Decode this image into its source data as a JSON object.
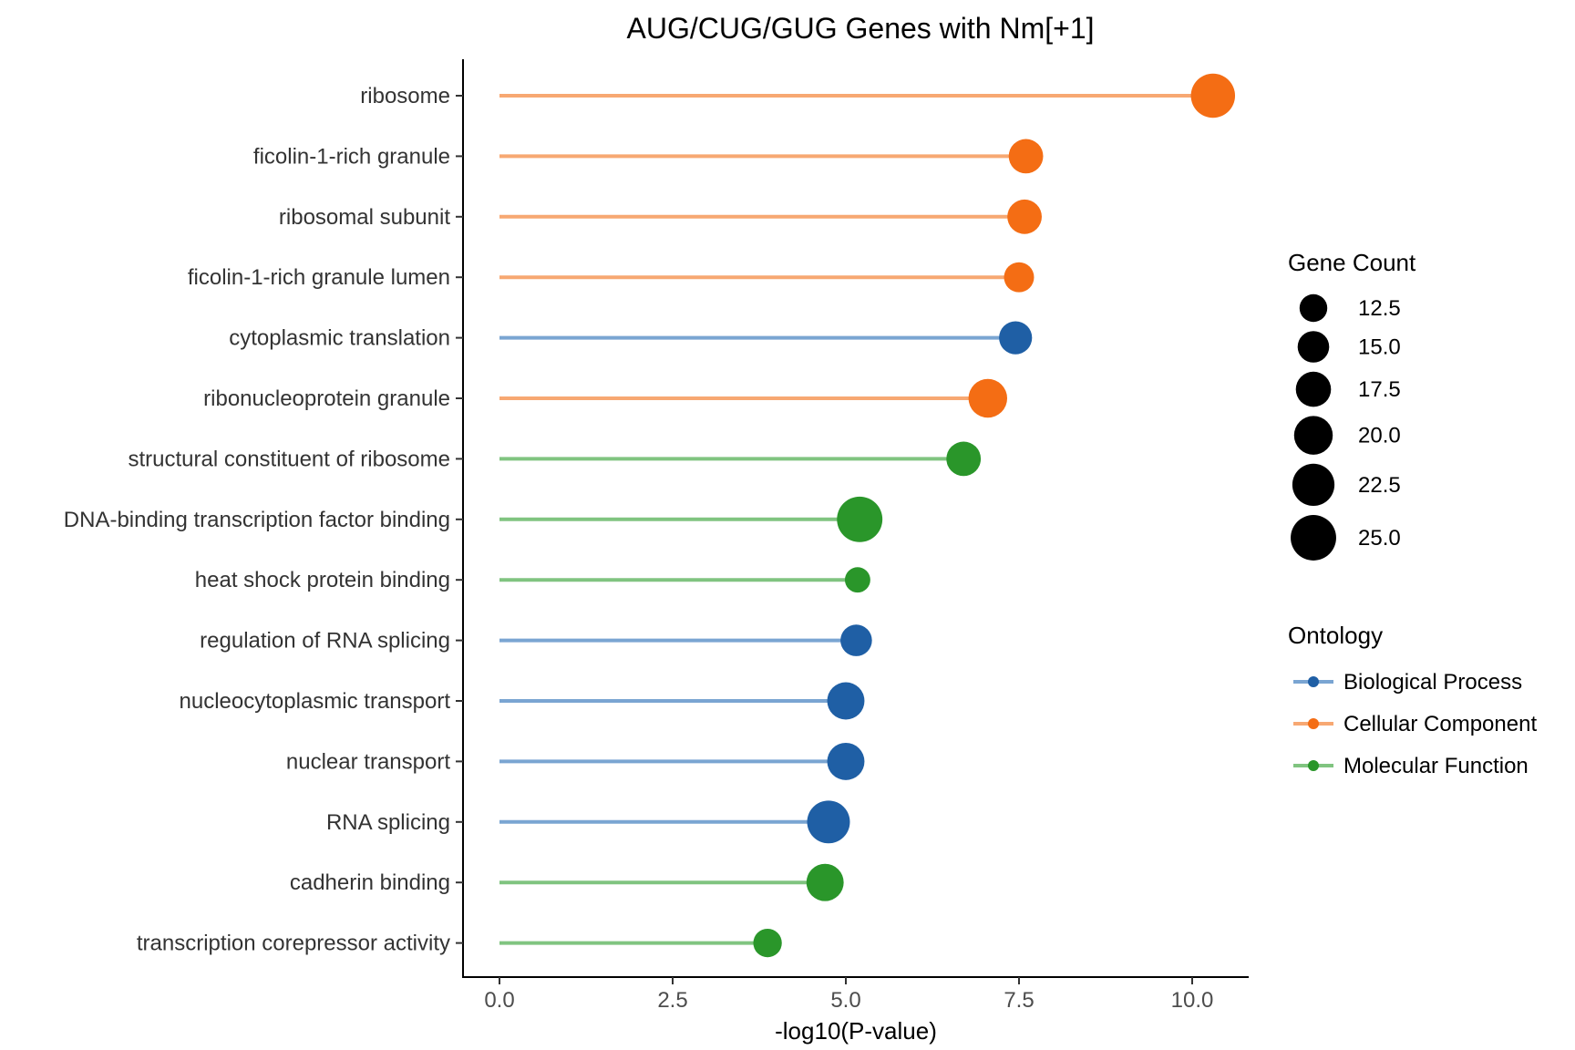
{
  "chart_data": {
    "type": "lollipop",
    "title": "AUG/CUG/GUG Genes with Nm[+1]",
    "xlabel": "-log10(P-value)",
    "ylabel": "",
    "xlim": [
      -0.5,
      10.8
    ],
    "xticks": [
      0.0,
      2.5,
      5.0,
      7.5,
      10.0
    ],
    "xtick_labels": [
      "0.0",
      "2.5",
      "5.0",
      "7.5",
      "10.0"
    ],
    "grid": false,
    "categories": [
      "ribosome",
      "ficolin-1-rich granule",
      "ribosomal subunit",
      "ficolin-1-rich granule lumen",
      "cytoplasmic translation",
      "ribonucleoprotein granule",
      "structural constituent of ribosome",
      "DNA-binding transcription factor binding",
      "heat shock protein binding",
      "regulation of RNA splicing",
      "nucleocytoplasmic transport",
      "nuclear transport",
      "RNA splicing",
      "cadherin binding",
      "transcription corepressor activity"
    ],
    "values": [
      10.3,
      7.6,
      7.58,
      7.5,
      7.45,
      7.05,
      6.7,
      5.2,
      5.17,
      5.15,
      5.0,
      5.0,
      4.75,
      4.7,
      3.87
    ],
    "gene_counts": [
      24,
      17,
      17,
      14,
      16,
      20,
      17,
      25,
      11,
      15,
      19,
      19,
      23,
      19,
      13
    ],
    "ontology": [
      "Cellular Component",
      "Cellular Component",
      "Cellular Component",
      "Cellular Component",
      "Biological Process",
      "Cellular Component",
      "Molecular Function",
      "Molecular Function",
      "Molecular Function",
      "Biological Process",
      "Biological Process",
      "Biological Process",
      "Biological Process",
      "Molecular Function",
      "Molecular Function"
    ],
    "size_legend": {
      "title": "Gene Count",
      "values": [
        12.5,
        15.0,
        17.5,
        20.0,
        22.5,
        25.0
      ],
      "labels": [
        "12.5",
        "15.0",
        "17.5",
        "20.0",
        "22.5",
        "25.0"
      ]
    },
    "color_legend": {
      "title": "Ontology",
      "entries": [
        {
          "name": "Biological Process",
          "point_color": "#1f5fa5",
          "line_color": "#7aa5d2"
        },
        {
          "name": "Cellular Component",
          "point_color": "#f46d14",
          "line_color": "#f7a872"
        },
        {
          "name": "Molecular Function",
          "point_color": "#2a962a",
          "line_color": "#80c480"
        }
      ],
      "placement": "right"
    }
  }
}
